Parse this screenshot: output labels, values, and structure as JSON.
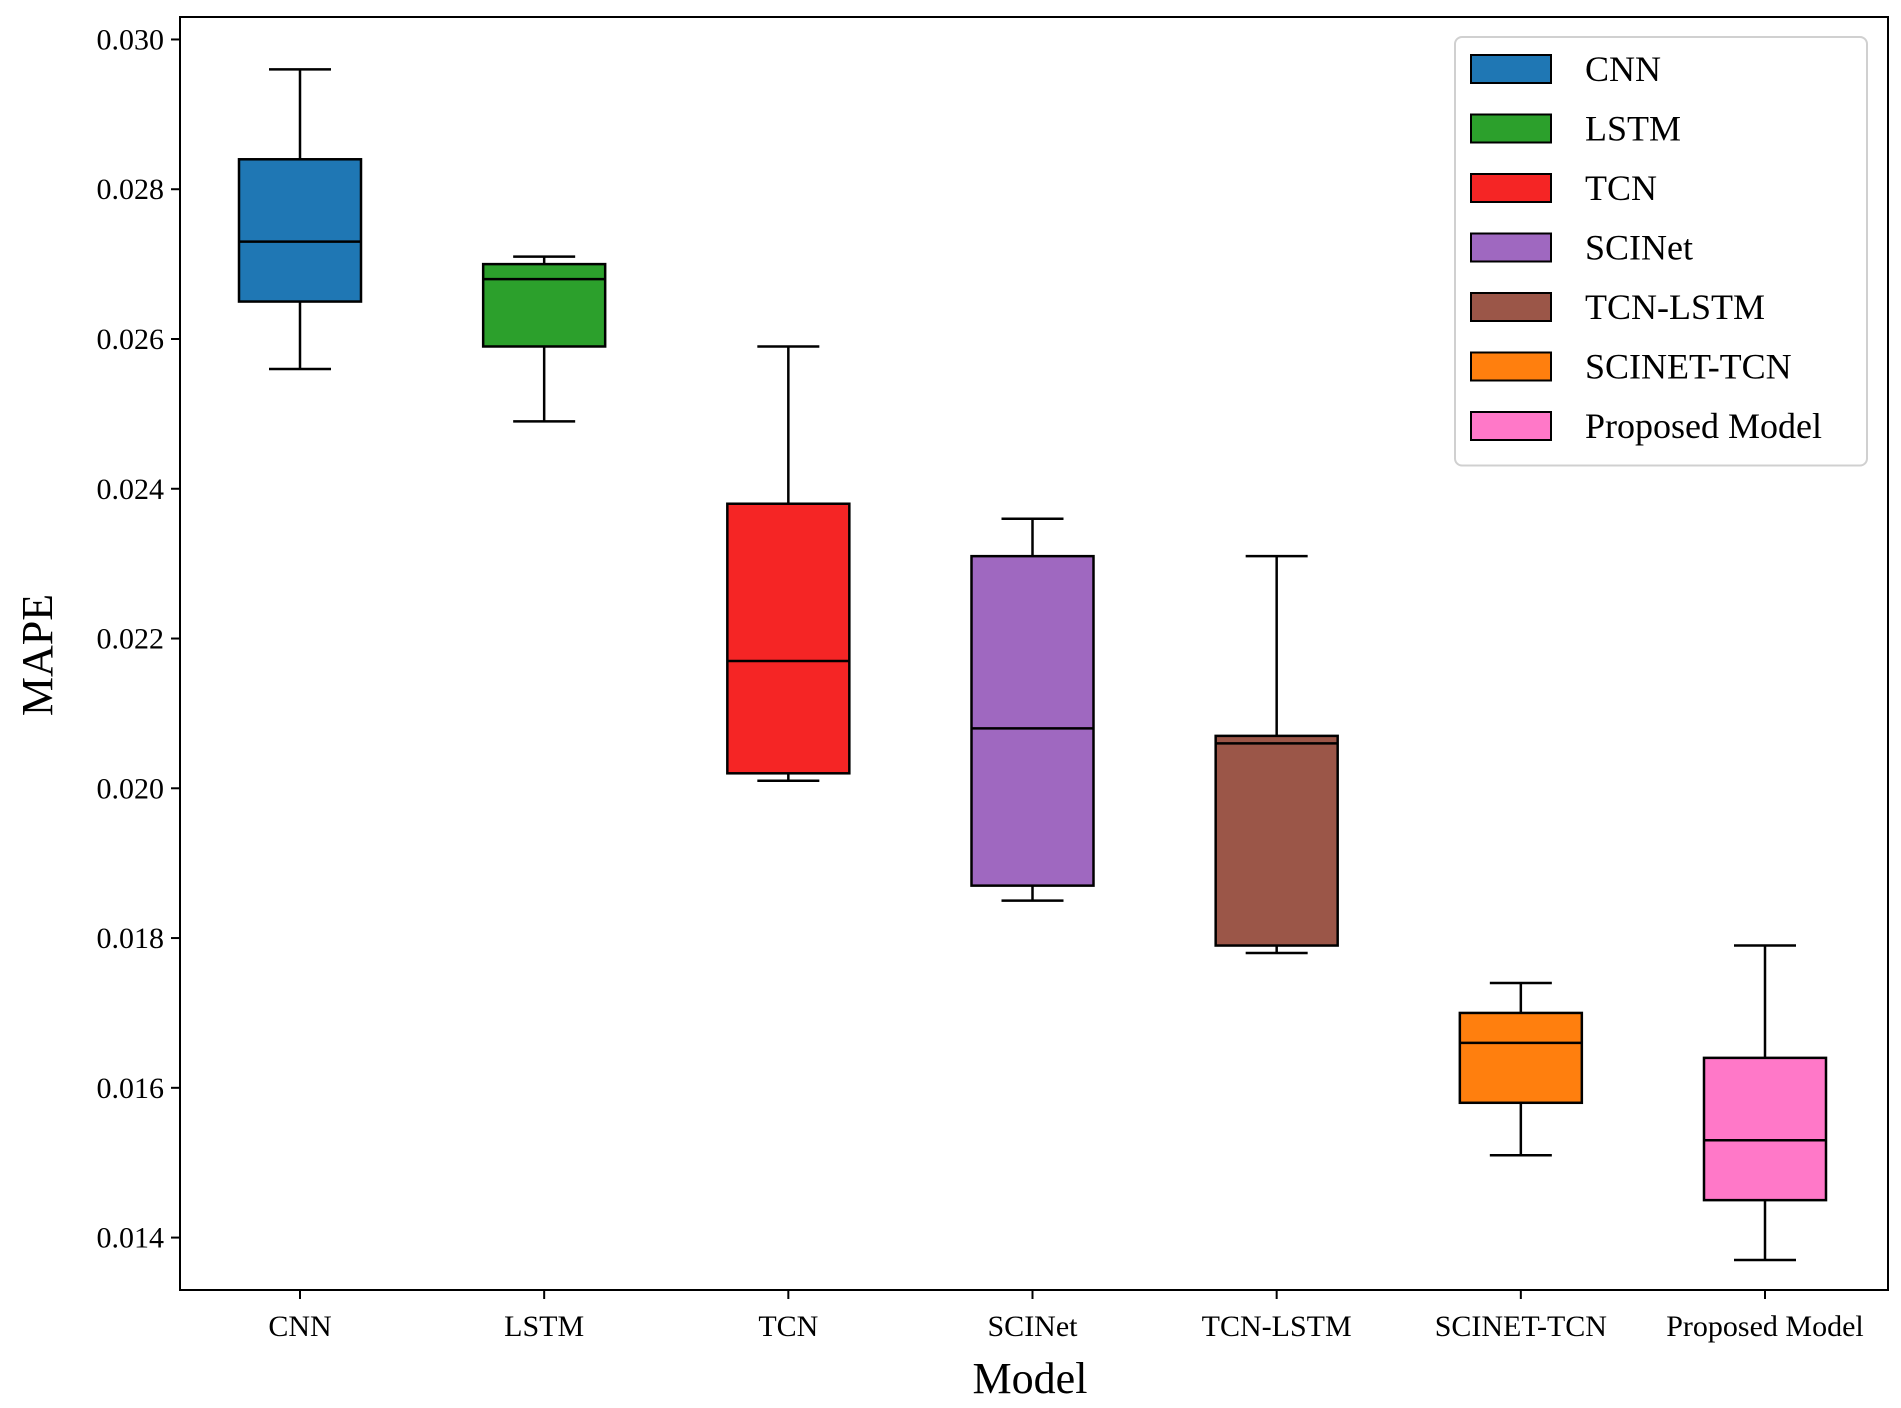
{
  "chart_data": {
    "type": "boxplot",
    "xlabel": "Model",
    "ylabel": "MAPE",
    "ylim": [
      0.0133,
      0.0303
    ],
    "yticks": [
      "0.014",
      "0.016",
      "0.018",
      "0.020",
      "0.022",
      "0.024",
      "0.026",
      "0.028",
      "0.030"
    ],
    "legend_position": "top-right",
    "categories": [
      "CNN",
      "LSTM",
      "TCN",
      "SCINet",
      "TCN-LSTM",
      "SCINET-TCN",
      "Proposed Model"
    ],
    "series": [
      {
        "name": "CNN",
        "color": "#1f77b4",
        "min": 0.0256,
        "q1": 0.0265,
        "median": 0.0273,
        "q3": 0.0284,
        "max": 0.0296
      },
      {
        "name": "LSTM",
        "color": "#2ca02c",
        "min": 0.0249,
        "q1": 0.0259,
        "median": 0.0268,
        "q3": 0.027,
        "max": 0.0271
      },
      {
        "name": "TCN",
        "color": "#f52525",
        "min": 0.0201,
        "q1": 0.0202,
        "median": 0.0217,
        "q3": 0.0238,
        "max": 0.0259
      },
      {
        "name": "SCINet",
        "color": "#9f68c0",
        "min": 0.0185,
        "q1": 0.0187,
        "median": 0.0208,
        "q3": 0.0231,
        "max": 0.0236
      },
      {
        "name": "TCN-LSTM",
        "color": "#9b5648",
        "min": 0.0178,
        "q1": 0.0179,
        "median": 0.0206,
        "q3": 0.0207,
        "max": 0.0231
      },
      {
        "name": "SCINET-TCN",
        "color": "#ff7f0e",
        "min": 0.0151,
        "q1": 0.0158,
        "median": 0.0166,
        "q3": 0.017,
        "max": 0.0174
      },
      {
        "name": "Proposed Model",
        "color": "#ff78c8",
        "min": 0.0137,
        "q1": 0.0145,
        "median": 0.0153,
        "q3": 0.0164,
        "max": 0.0179
      }
    ]
  }
}
